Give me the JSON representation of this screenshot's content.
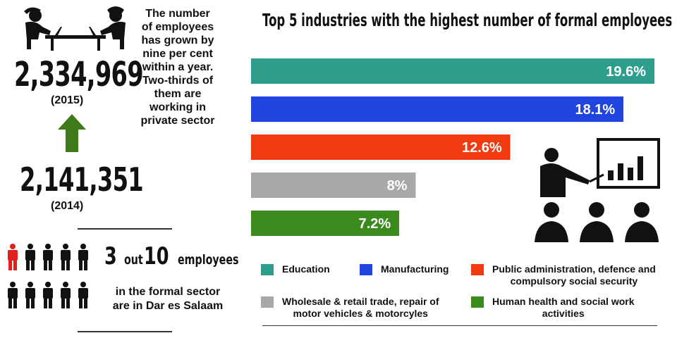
{
  "stats": {
    "employees_2015": "2,334,969",
    "year_2015": "(2015)",
    "employees_2014": "2,141,351",
    "year_2014": "(2014)",
    "growth_lines": [
      "The number",
      "of employees",
      "has grown by",
      "nine per cent",
      "within a year.",
      "Two-thirds of",
      "them are",
      "working in",
      "private sector"
    ],
    "ratio_three": "3",
    "ratio_out": "out",
    "ratio_ten": "10",
    "ratio_employees": "employees",
    "sector_line1": "in the formal sector",
    "sector_line2": "are in Dar es Salaam"
  },
  "chart_data": {
    "type": "bar",
    "orientation": "horizontal",
    "title": "Top 5 industries with the highest number of formal employees",
    "categories": [
      "Education",
      "Manufacturing",
      "Public administration, defence and compulsory social security",
      "Wholesale & retail trade, repair of motor vehicles & motorcyles",
      "Human health and social work activities"
    ],
    "values": [
      19.6,
      18.1,
      12.6,
      8,
      7.2
    ],
    "value_labels": [
      "19.6%",
      "18.1%",
      "12.6%",
      "8%",
      "7.2%"
    ],
    "colors": [
      "#2e9e8c",
      "#1f44e0",
      "#f03a10",
      "#a8a8a8",
      "#3a8a1e"
    ],
    "xlim": [
      0,
      19.6
    ],
    "legend_placement": "bottom",
    "legend": [
      {
        "lines": [
          "Education"
        ]
      },
      {
        "lines": [
          "Manufacturing"
        ]
      },
      {
        "lines": [
          "Public administration, defence and",
          "compulsory social security"
        ]
      },
      {
        "lines": [
          "Wholesale & retail trade, repair of",
          "motor vehicles & motorcyles"
        ]
      },
      {
        "lines": [
          "Human health and social work",
          "activities"
        ]
      }
    ]
  },
  "colors": {
    "accent_red": "#e0201c",
    "arrow_green": "#3f7a18",
    "dark": "#111111"
  }
}
